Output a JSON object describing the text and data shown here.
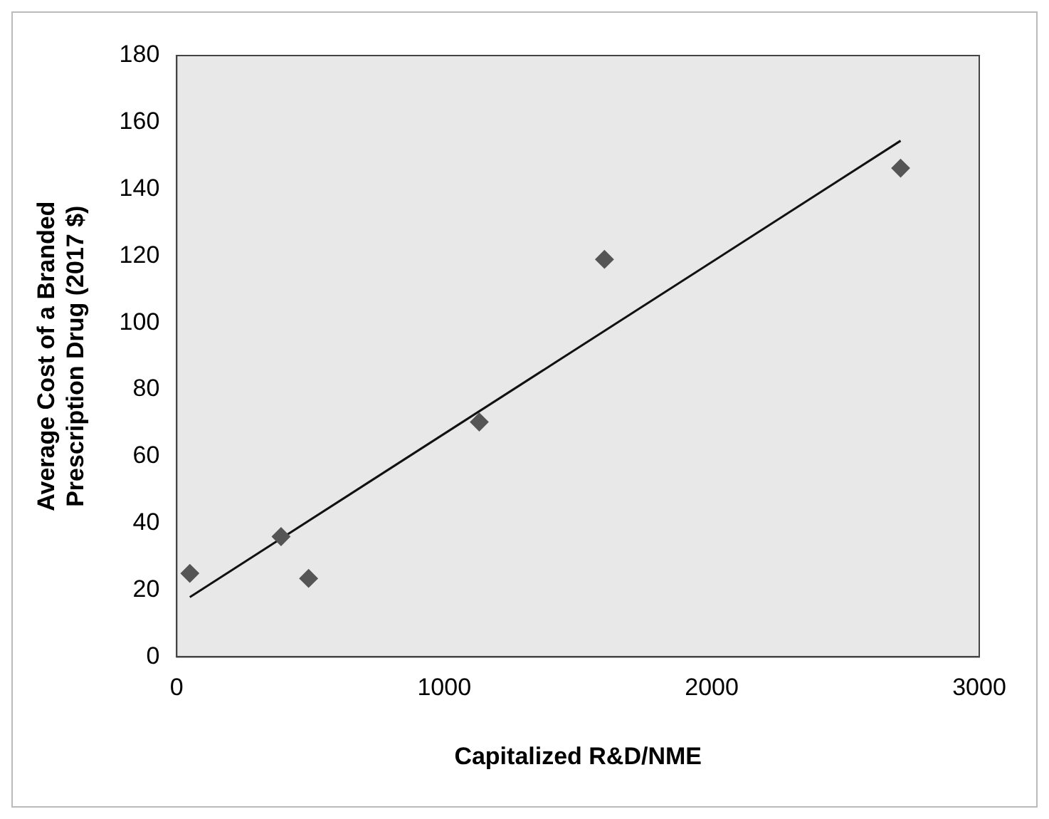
{
  "chart_data": {
    "type": "scatter",
    "xlabel": "Capitalized R&D/NME",
    "ylabel": "Average Cost of a Branded Prescription Drug (2017 $)",
    "xlim": [
      0,
      3000
    ],
    "xticks": [
      0,
      1000,
      2000,
      3000
    ],
    "ylim": [
      0,
      180
    ],
    "yticks": [
      0,
      20,
      40,
      60,
      80,
      100,
      120,
      140,
      160,
      180
    ],
    "grid": false,
    "legend": false,
    "marker": "diamond",
    "series": [
      {
        "color": "#555555",
        "x": [
          49,
          390,
          493,
          1131,
          1599,
          2706
        ],
        "values": [
          25,
          36,
          23.5,
          70.3,
          119,
          146.3
        ]
      },
      {
        "type": "line",
        "color": "#111111",
        "marker": "none",
        "x": [
          49,
          2706
        ],
        "values": [
          17.9,
          154.5
        ]
      }
    ]
  }
}
